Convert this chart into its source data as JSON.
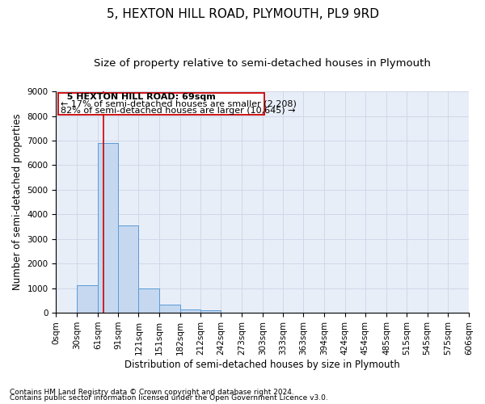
{
  "title": "5, HEXTON HILL ROAD, PLYMOUTH, PL9 9RD",
  "subtitle": "Size of property relative to semi-detached houses in Plymouth",
  "xlabel": "Distribution of semi-detached houses by size in Plymouth",
  "ylabel": "Number of semi-detached properties",
  "footnote1": "Contains HM Land Registry data © Crown copyright and database right 2024.",
  "footnote2": "Contains public sector information licensed under the Open Government Licence v3.0.",
  "annotation_line1": "  5 HEXTON HILL ROAD: 69sqm",
  "annotation_line2": "← 17% of semi-detached houses are smaller (2,208)",
  "annotation_line3": "82% of semi-detached houses are larger (10,645) →",
  "bar_left_edges": [
    0,
    30,
    61,
    91,
    121,
    151,
    182,
    212,
    242,
    273,
    303,
    333,
    363,
    394,
    424,
    454,
    485,
    515,
    545,
    575
  ],
  "bar_widths": [
    30,
    31,
    30,
    30,
    30,
    31,
    30,
    30,
    31,
    30,
    30,
    30,
    31,
    30,
    30,
    31,
    30,
    30,
    30,
    31
  ],
  "bar_heights": [
    0,
    1130,
    6900,
    3560,
    1000,
    330,
    140,
    100,
    0,
    0,
    0,
    0,
    0,
    0,
    0,
    0,
    0,
    0,
    0,
    0
  ],
  "bar_color": "#c5d8f0",
  "bar_edge_color": "#5b9bd5",
  "red_line_x": 69,
  "ylim": [
    0,
    9000
  ],
  "yticks": [
    0,
    1000,
    2000,
    3000,
    4000,
    5000,
    6000,
    7000,
    8000,
    9000
  ],
  "xtick_positions": [
    0,
    30,
    61,
    91,
    121,
    151,
    182,
    212,
    242,
    273,
    303,
    333,
    363,
    394,
    424,
    454,
    485,
    515,
    545,
    575,
    606
  ],
  "xtick_labels": [
    "0sqm",
    "30sqm",
    "61sqm",
    "91sqm",
    "121sqm",
    "151sqm",
    "182sqm",
    "212sqm",
    "242sqm",
    "273sqm",
    "303sqm",
    "333sqm",
    "363sqm",
    "394sqm",
    "424sqm",
    "454sqm",
    "485sqm",
    "515sqm",
    "545sqm",
    "575sqm",
    "606sqm"
  ],
  "grid_color": "#d0d8e8",
  "background_color": "#e8eef8",
  "box_color": "#cc0000",
  "title_fontsize": 11,
  "subtitle_fontsize": 9.5,
  "axis_label_fontsize": 8.5,
  "tick_fontsize": 7.5,
  "annotation_fontsize": 8,
  "footnote_fontsize": 6.5
}
